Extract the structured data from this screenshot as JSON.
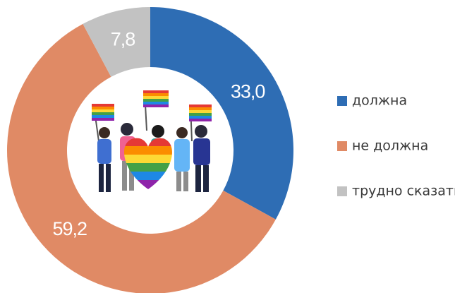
{
  "chart_data": {
    "type": "pie",
    "categories": [
      "должна",
      "не должна",
      "трудно сказать"
    ],
    "values": [
      33.0,
      59.2,
      7.8
    ],
    "value_labels": [
      "33,0",
      "59,2",
      "7,8"
    ],
    "colors": [
      "#2e6db4",
      "#e08a65",
      "#c2c2c2"
    ],
    "legend": "right"
  }
}
